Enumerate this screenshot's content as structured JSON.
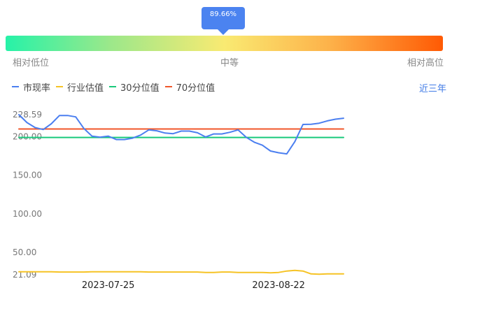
{
  "gauge": {
    "tooltip": "89.66%",
    "low_label": "相对低位",
    "mid_label": "中等",
    "high_label": "相对高位"
  },
  "legend": {
    "items": [
      {
        "label": "市现率",
        "color": "#4b7ff0"
      },
      {
        "label": "行业估值",
        "color": "#f6c325"
      },
      {
        "label": "30分位值",
        "color": "#19c97b"
      },
      {
        "label": "70分位值",
        "color": "#f0562a"
      }
    ]
  },
  "range_selector": {
    "label": "近三年"
  },
  "chart_data": {
    "type": "line",
    "y_ticks": [
      {
        "value": 228.59,
        "label": "228.59"
      },
      {
        "value": 200,
        "label": "200.00"
      },
      {
        "value": 150,
        "label": "150.00"
      },
      {
        "value": 100,
        "label": "100.00"
      },
      {
        "value": 50,
        "label": "50.00"
      },
      {
        "value": 21.09,
        "label": "21.09"
      }
    ],
    "ylim": [
      21.09,
      228.59
    ],
    "x_ticks": [
      {
        "index": 11,
        "label": "2023-07-25"
      },
      {
        "index": 32,
        "label": "2023-08-22"
      }
    ],
    "x_count": 41,
    "series": [
      {
        "name": "市现率",
        "color": "#4b7ff0",
        "values": [
          228.6,
          218.3,
          211.8,
          209.3,
          216.8,
          227.5,
          227.5,
          225.7,
          210.7,
          200.8,
          199.3,
          200.8,
          196.3,
          196.3,
          198.1,
          202.1,
          208.8,
          207.7,
          204.8,
          203.9,
          207.3,
          207.3,
          205.1,
          199.7,
          203.6,
          203.6,
          205.8,
          208.8,
          199.3,
          192.9,
          189.0,
          181.5,
          179.2,
          177.8,
          193.6,
          215.9,
          216.2,
          217.5,
          220.5,
          222.7,
          224.0
        ]
      },
      {
        "name": "行业估值",
        "color": "#f6c325",
        "values": [
          25.0,
          25.0,
          25.0,
          25.0,
          25.0,
          24.6,
          24.6,
          24.6,
          24.6,
          25.0,
          25.0,
          25.0,
          25.0,
          25.0,
          25.0,
          25.0,
          24.6,
          24.6,
          24.6,
          24.6,
          24.6,
          24.6,
          24.6,
          24.1,
          24.1,
          24.6,
          24.6,
          24.1,
          24.1,
          24.1,
          24.1,
          23.6,
          24.1,
          25.9,
          26.8,
          25.9,
          22.2,
          21.7,
          22.2,
          22.2,
          22.2
        ]
      },
      {
        "name": "30分位值",
        "color": "#19c97b",
        "values": [
          199.0
        ]
      },
      {
        "name": "70分位值",
        "color": "#f0562a",
        "values": [
          210.0
        ]
      }
    ]
  }
}
